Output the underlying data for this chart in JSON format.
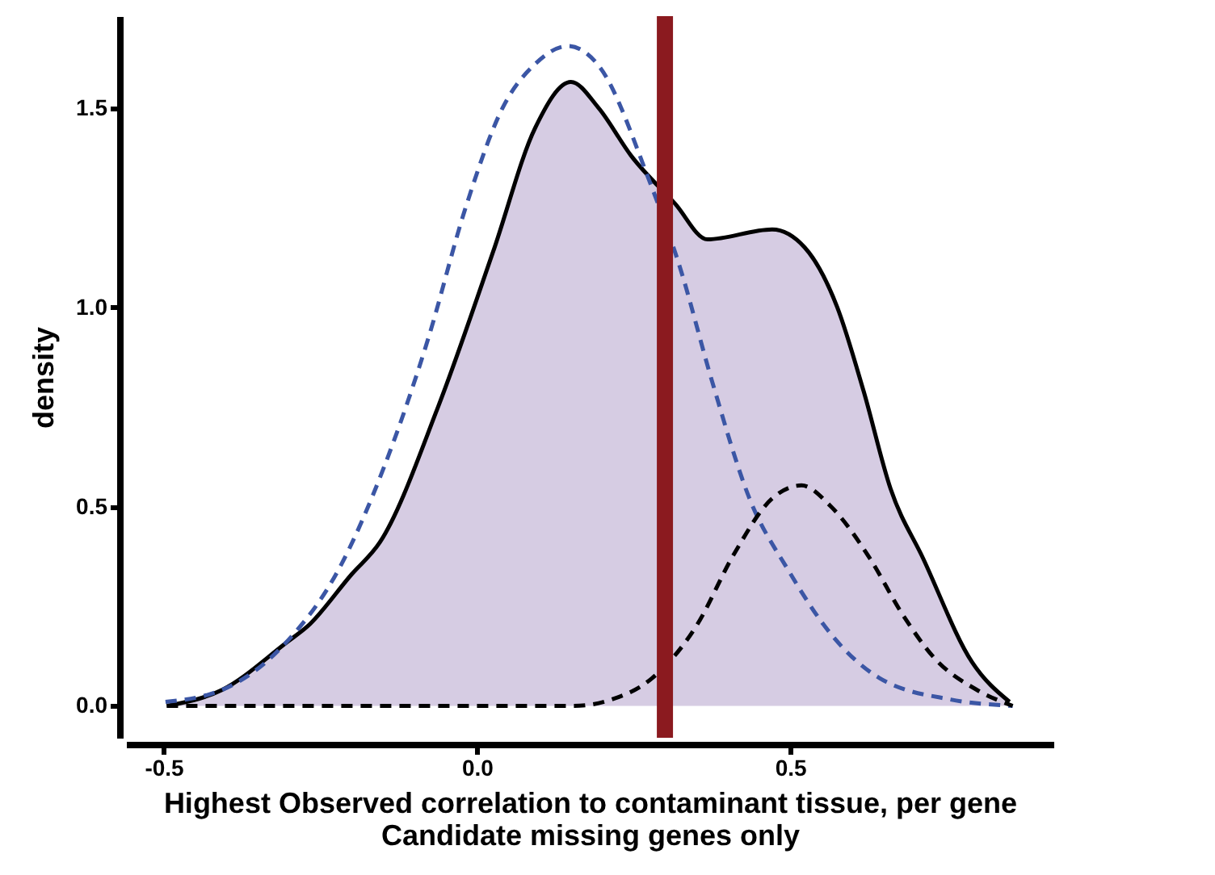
{
  "chart_data": {
    "type": "area",
    "xlabel": "Highest Observed correlation to contaminant tissue, per gene\nCandidate missing genes only",
    "ylabel": "density",
    "xlim": [
      -0.56,
      0.92
    ],
    "ylim": [
      -0.08,
      1.73
    ],
    "xticks": [
      {
        "value": -0.5,
        "label": "-0.5"
      },
      {
        "value": 0,
        "label": "0.0"
      },
      {
        "value": 0.5,
        "label": "0.5"
      }
    ],
    "yticks": [
      {
        "value": 0,
        "label": "0.0"
      },
      {
        "value": 0.5,
        "label": "0.5"
      },
      {
        "value": 1,
        "label": "1.0"
      },
      {
        "value": 1.5,
        "label": "1.5"
      }
    ],
    "grid": false,
    "series": [
      {
        "color": "#c5b6d7",
        "x": [
          -0.495,
          -0.407,
          -0.303,
          -0.27,
          -0.2,
          -0.155,
          -0.062,
          0.026,
          0.093,
          0.15,
          0.194,
          0.246,
          0.316,
          0.368,
          0.471,
          0.523,
          0.575,
          0.617,
          0.66,
          0.712,
          0.79,
          0.85
        ],
        "values": [
          0.0,
          0.04,
          0.16,
          0.2,
          0.33,
          0.41,
          0.75,
          1.14,
          1.45,
          1.565,
          1.5,
          1.38,
          1.26,
          1.17,
          1.195,
          1.15,
          1.0,
          0.79,
          0.545,
          0.37,
          0.11,
          0.01
        ]
      },
      {
        "type": "line",
        "color": "#3b56a5",
        "line_style": "dashed",
        "x": [
          -0.497,
          -0.407,
          -0.31,
          -0.218,
          -0.148,
          -0.078,
          -0.018,
          0.041,
          0.093,
          0.145,
          0.197,
          0.272,
          0.324,
          0.376,
          0.435,
          0.497,
          0.565,
          0.642,
          0.756,
          0.855
        ],
        "values": [
          0.01,
          0.04,
          0.15,
          0.35,
          0.6,
          0.92,
          1.25,
          1.5,
          1.61,
          1.655,
          1.6,
          1.33,
          1.1,
          0.81,
          0.52,
          0.34,
          0.18,
          0.07,
          0.016,
          0.0
        ]
      },
      {
        "type": "line",
        "color": "#000000",
        "line_style": "dashed",
        "x": [
          -0.495,
          0.155,
          0.215,
          0.28,
          0.35,
          0.41,
          0.471,
          0.518,
          0.565,
          0.627,
          0.679,
          0.73,
          0.798,
          0.855
        ],
        "values": [
          0.0,
          0.0,
          0.016,
          0.07,
          0.2,
          0.38,
          0.52,
          0.553,
          0.5,
          0.37,
          0.23,
          0.12,
          0.04,
          0.0
        ]
      }
    ],
    "ref_lines": [
      {
        "axis": "x",
        "value": 0.3,
        "color": "#8b1a1f"
      }
    ]
  }
}
